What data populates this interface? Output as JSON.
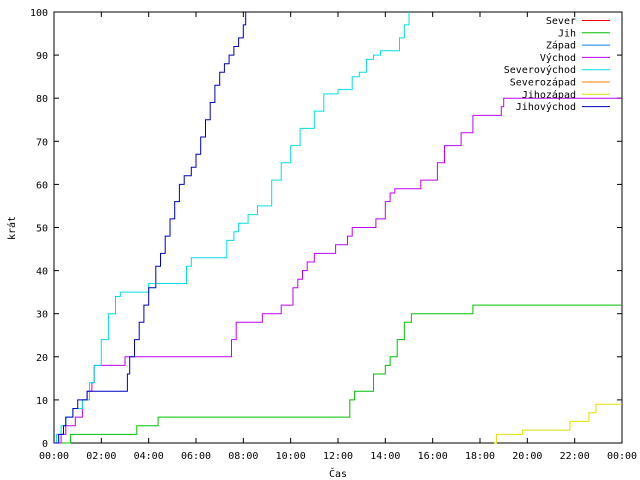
{
  "chart_data": {
    "type": "line",
    "title": "",
    "xlabel": "Čas",
    "ylabel": "krát",
    "xlim": [
      0,
      24
    ],
    "ylim": [
      0,
      100
    ],
    "x_tick_labels": [
      "00:00",
      "02:00",
      "04:00",
      "06:00",
      "08:00",
      "10:00",
      "12:00",
      "14:00",
      "16:00",
      "18:00",
      "20:00",
      "22:00",
      "00:00"
    ],
    "y_tick_labels": [
      "0",
      "10",
      "20",
      "30",
      "40",
      "50",
      "60",
      "70",
      "80",
      "90",
      "100"
    ],
    "grid": false,
    "legend_position": "top-right",
    "series": [
      {
        "name": "Sever",
        "color": "#ff0000",
        "x": [],
        "y": []
      },
      {
        "name": "Jih",
        "color": "#00c000",
        "x": [
          0.0,
          0.6,
          0.7,
          3.5,
          3.5,
          4.4,
          4.4,
          12.4,
          12.5,
          12.7,
          12.7,
          13.3,
          13.5,
          13.7,
          14.0,
          14.2,
          14.5,
          14.8,
          15.1,
          15.2,
          17.6,
          17.7,
          24.0
        ],
        "y": [
          0,
          0,
          2,
          2,
          4,
          4,
          6,
          6,
          10,
          10,
          12,
          12,
          16,
          16,
          18,
          20,
          24,
          28,
          30,
          30,
          30,
          32,
          32
        ]
      },
      {
        "name": "Západ",
        "color": "#0080ff",
        "x": [],
        "y": []
      },
      {
        "name": "Východ",
        "color": "#c000ff",
        "x": [
          0.0,
          0.2,
          0.3,
          0.5,
          0.9,
          1.2,
          1.4,
          1.6,
          1.7,
          2.9,
          3.0,
          7.3,
          7.5,
          7.7,
          8.5,
          8.8,
          9.3,
          9.6,
          10.1,
          10.3,
          10.5,
          10.7,
          11.0,
          11.1,
          11.8,
          11.9,
          12.3,
          12.4,
          12.6,
          13.5,
          13.6,
          14.0,
          14.2,
          14.4,
          15.0,
          15.5,
          15.8,
          16.2,
          16.5,
          16.8,
          17.2,
          17.7,
          18.4,
          18.9,
          19.0,
          24.0
        ],
        "y": [
          0,
          0,
          2,
          4,
          6,
          10,
          12,
          14,
          18,
          18,
          20,
          20,
          24,
          28,
          28,
          30,
          30,
          32,
          36,
          38,
          40,
          42,
          44,
          44,
          44,
          46,
          46,
          48,
          50,
          50,
          52,
          56,
          58,
          59,
          59,
          61,
          61,
          65,
          69,
          69,
          72,
          76,
          76,
          78,
          80,
          80
        ]
      },
      {
        "name": "Severovýchod",
        "color": "#00e0e0",
        "x": [
          0.0,
          0.1,
          0.3,
          0.5,
          0.8,
          1.2,
          1.5,
          1.7,
          2.0,
          2.3,
          2.6,
          2.8,
          3.8,
          4.0,
          5.4,
          5.6,
          5.8,
          6.8,
          7.3,
          7.6,
          7.8,
          8.2,
          8.6,
          9.2,
          9.6,
          10.0,
          10.4,
          11.0,
          11.4,
          12.0,
          12.6,
          12.9,
          13.2,
          13.5,
          13.8,
          14.6,
          14.8,
          15.0
        ],
        "y": [
          0,
          2,
          4,
          6,
          8,
          10,
          14,
          18,
          24,
          30,
          34,
          35,
          35,
          37,
          37,
          41,
          43,
          43,
          47,
          49,
          51,
          53,
          55,
          61,
          65,
          69,
          73,
          77,
          81,
          82,
          85,
          86,
          89,
          90,
          91,
          94,
          97,
          100
        ]
      },
      {
        "name": "Severozápad",
        "color": "#ff8000",
        "x": [],
        "y": []
      },
      {
        "name": "Jihozápad",
        "color": "#e0e000",
        "x": [
          18.6,
          18.7,
          19.4,
          19.8,
          20.5,
          21.3,
          21.5,
          21.8,
          22.3,
          22.6,
          22.9,
          24.0
        ],
        "y": [
          0,
          2,
          2,
          3,
          3,
          3,
          3,
          5,
          5,
          7,
          9,
          9
        ]
      },
      {
        "name": "Jihovýchod",
        "color": "#0000c0",
        "x": [
          0.0,
          0.2,
          0.4,
          0.5,
          0.8,
          1.0,
          1.4,
          2.0,
          2.9,
          3.1,
          3.2,
          3.4,
          3.6,
          3.8,
          4.0,
          4.3,
          4.5,
          4.7,
          4.9,
          5.1,
          5.3,
          5.5,
          5.8,
          6.0,
          6.2,
          6.4,
          6.6,
          6.8,
          7.0,
          7.2,
          7.4,
          7.6,
          7.8,
          8.0,
          8.1
        ],
        "y": [
          0,
          2,
          4,
          6,
          8,
          10,
          12,
          12,
          12,
          16,
          20,
          24,
          28,
          32,
          36,
          41,
          44,
          48,
          52,
          56,
          60,
          62,
          64,
          67,
          71,
          75,
          79,
          83,
          86,
          88,
          90,
          92,
          94,
          97,
          100
        ]
      }
    ]
  }
}
